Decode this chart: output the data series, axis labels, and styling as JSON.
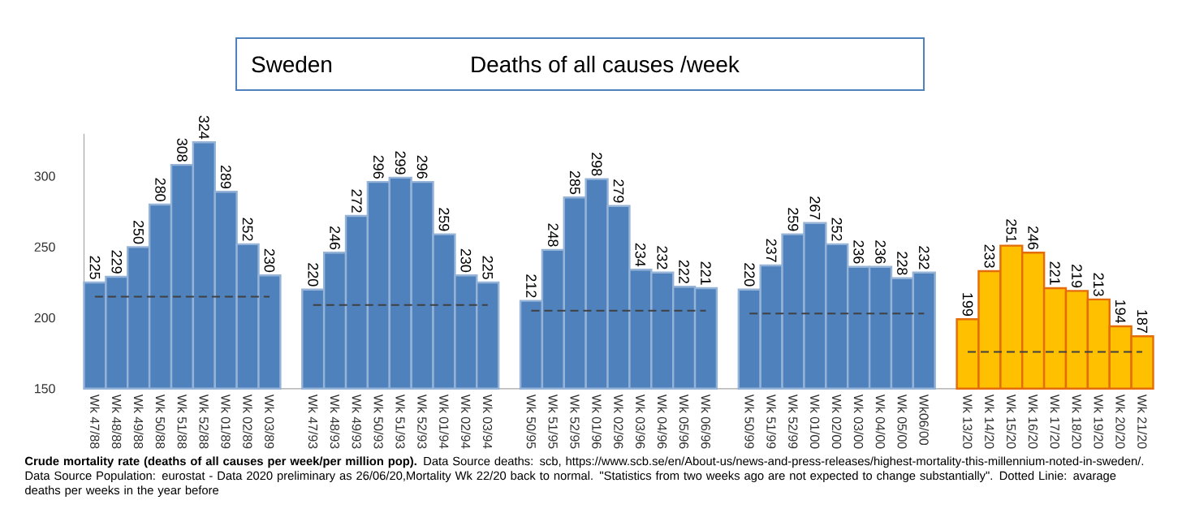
{
  "chart_data": {
    "type": "bar",
    "title": "Sweden",
    "subtitle": "Deaths of all causes /week",
    "categories": [
      "Wk 47/88",
      "Wk 48/88",
      "Wk 49/88",
      "Wk 50/88",
      "Wk 51/88",
      "Wk 52/88",
      "Wk 01/89",
      "Wk 02/89",
      "Wk 03/89",
      null,
      "Wk 47/93",
      "Wk 48/93",
      "Wk 49/93",
      "Wk 50/93",
      "Wk 51/93",
      "Wk 52/93",
      "Wk 01/94",
      "Wk 02/94",
      "Wk 03/94",
      null,
      "Wk 50/95",
      "Wk 51/95",
      "Wk 52/95",
      "Wk 01/96",
      "Wk 02/96",
      "Wk 03/96",
      "Wk 04/96",
      "Wk 05/96",
      "Wk 06/96",
      null,
      "Wk 50/99",
      "Wk 51/99",
      "Wk 52/99",
      "Wk 01/00",
      "Wk 02/00",
      "Wk 03/00",
      "Wk 04/00",
      "Wk 05/00",
      "Wk06/00",
      null,
      "Wk 13/20",
      "Wk 14/20",
      "Wk 15/20",
      "Wk 16/20",
      "Wk 17/20",
      "Wk 18/20",
      "Wk 19/20",
      "Wk 20/20",
      "Wk 21/20"
    ],
    "series": [
      {
        "value_labels": [
          "225",
          "229",
          "250",
          "280",
          "308",
          "324",
          "289",
          "252",
          "230",
          null,
          "220",
          "246",
          "272",
          "296",
          "299",
          "296",
          "259",
          "230",
          "225",
          null,
          "212",
          "248",
          "285",
          "298",
          "279",
          "234",
          "232",
          "222",
          "221",
          null,
          "220",
          "237",
          "259",
          "267",
          "252",
          "236",
          "236",
          "228",
          "232",
          null,
          "199",
          "233",
          "251",
          "246",
          "221",
          "219",
          "213",
          "194",
          "187"
        ],
        "values": [
          225,
          229,
          250,
          280,
          308,
          324,
          289,
          252,
          230,
          null,
          220,
          246,
          272,
          296,
          299,
          296,
          259,
          230,
          225,
          null,
          212,
          248,
          285,
          298,
          279,
          234,
          232,
          222,
          221,
          null,
          220,
          237,
          259,
          267,
          252,
          236,
          236,
          228,
          232,
          null,
          199,
          233,
          251,
          246,
          221,
          219,
          213,
          194,
          187
        ],
        "colors": [
          "#4f81bd",
          "#4f81bd",
          "#4f81bd",
          "#4f81bd",
          "#4f81bd",
          "#4f81bd",
          "#4f81bd",
          "#4f81bd",
          "#4f81bd",
          null,
          "#4f81bd",
          "#4f81bd",
          "#4f81bd",
          "#4f81bd",
          "#4f81bd",
          "#4f81bd",
          "#4f81bd",
          "#4f81bd",
          "#4f81bd",
          null,
          "#4f81bd",
          "#4f81bd",
          "#4f81bd",
          "#4f81bd",
          "#4f81bd",
          "#4f81bd",
          "#4f81bd",
          "#4f81bd",
          "#4f81bd",
          null,
          "#4f81bd",
          "#4f81bd",
          "#4f81bd",
          "#4f81bd",
          "#4f81bd",
          "#4f81bd",
          "#4f81bd",
          "#4f81bd",
          "#4f81bd",
          null,
          "#ffc000",
          "#ffc000",
          "#ffc000",
          "#ffc000",
          "#ffc000",
          "#ffc000",
          "#ffc000",
          "#ffc000",
          "#ffc000"
        ]
      },
      {
        "type": "line",
        "x": [
          "Wk 47/88",
          "Wk 03/89"
        ],
        "values": [
          215,
          215
        ],
        "color": "#404040",
        "line_style": "dashed"
      },
      {
        "type": "line",
        "x": [
          "Wk 47/93",
          "Wk 03/94"
        ],
        "values": [
          209,
          209
        ],
        "color": "#404040",
        "line_style": "dashed"
      },
      {
        "type": "line",
        "x": [
          "Wk 50/95",
          "Wk 06/96"
        ],
        "values": [
          205,
          205
        ],
        "color": "#404040",
        "line_style": "dashed"
      },
      {
        "type": "line",
        "x": [
          "Wk 50/99",
          "Wk06/00"
        ],
        "values": [
          203,
          203
        ],
        "color": "#404040",
        "line_style": "dashed"
      },
      {
        "type": "line",
        "x": [
          "Wk 13/20",
          "Wk 21/20"
        ],
        "values": [
          176,
          176
        ],
        "color": "#404040",
        "line_style": "dashed"
      }
    ],
    "ylim": [
      150,
      330
    ],
    "yticks": [
      150,
      200,
      250,
      300
    ],
    "grid": false,
    "annotations": [
      "**Crude mortality rate (deaths of all causes per week/per million pop).** Data Source deaths: scb, https://www.scb.se/en/About-us/news-and-press-releases/highest-mortality-this-millennium-noted-in-sweden/. Data Source Population: eurostat -  Data 2020 preliminary as 26/06/20,Mortality Wk 22/20 back to normal. \"Statistics from two weeks ago are not expected to change substantially\".  Dotted Linie: avarage deaths per weeks in the year before"
    ]
  }
}
